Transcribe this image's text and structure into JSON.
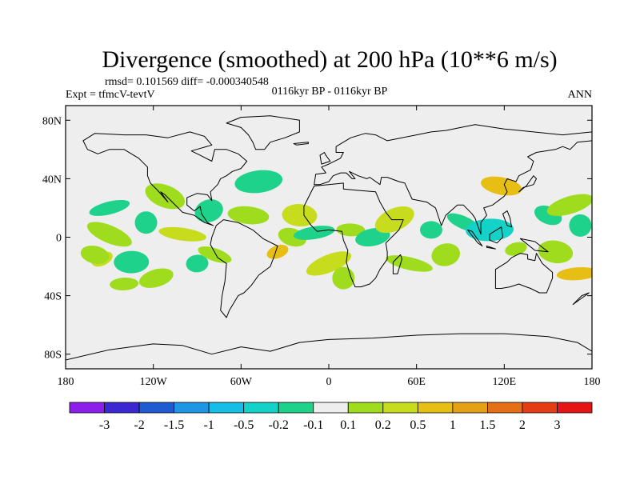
{
  "title": "Divergence (smoothed) at 200 hPa (10**6 m/s)",
  "stats": "rmsd= 0.101569 diff= -0.000340548",
  "expt": "Expt = tfmcV-tevtV",
  "period": "0116kyr BP - 0116kyr BP",
  "season": "ANN",
  "map": {
    "lon_range": [
      -180,
      180
    ],
    "lat_range": [
      -90,
      90
    ],
    "background": "#eeeeee",
    "coastline_color": "#000000",
    "x_ticks": [
      {
        "value": -180,
        "label": "180"
      },
      {
        "value": -120,
        "label": "120W"
      },
      {
        "value": -60,
        "label": "60W"
      },
      {
        "value": 0,
        "label": "0"
      },
      {
        "value": 60,
        "label": "60E"
      },
      {
        "value": 120,
        "label": "120E"
      },
      {
        "value": 180,
        "label": "180"
      }
    ],
    "y_ticks": [
      {
        "value": 80,
        "label": "80N"
      },
      {
        "value": 40,
        "label": "40N"
      },
      {
        "value": 0,
        "label": "0"
      },
      {
        "value": -40,
        "label": "40S"
      },
      {
        "value": -80,
        "label": "80S"
      }
    ]
  },
  "colorbar": {
    "colors": [
      "#8c1eeb",
      "#3c28d2",
      "#1e5ad2",
      "#1e96e6",
      "#14bee6",
      "#14d2c8",
      "#1ed28c",
      "#eeeeee",
      "#a0dc1e",
      "#c8dc1e",
      "#e6be14",
      "#e6a014",
      "#e66e14",
      "#e63c14",
      "#e61414"
    ],
    "labels": [
      "-3",
      "-2",
      "-1.5",
      "-1",
      "-0.5",
      "-0.2",
      "-0.1",
      "0.1",
      "0.2",
      "0.5",
      "1",
      "1.5",
      "2",
      "3"
    ]
  },
  "chart_data": {
    "type": "heatmap",
    "variable": "Divergence (smoothed)",
    "level": "200 hPa",
    "units": "10**6 m/s",
    "levels": [
      -3,
      -2,
      -1.5,
      -1,
      -0.5,
      -0.2,
      -0.1,
      0.1,
      0.2,
      0.5,
      1,
      1.5,
      2,
      3
    ],
    "features": [
      {
        "lon": -155,
        "lat": -15,
        "value": 0.35
      },
      {
        "lon": -160,
        "lat": -12,
        "value": 0.15
      },
      {
        "lon": -135,
        "lat": -17,
        "value": -0.15
      },
      {
        "lon": -150,
        "lat": 20,
        "value": -0.12
      },
      {
        "lon": -150,
        "lat": 2,
        "value": 0.15
      },
      {
        "lon": -125,
        "lat": 10,
        "value": -0.12
      },
      {
        "lon": -140,
        "lat": -32,
        "value": 0.15
      },
      {
        "lon": -118,
        "lat": -28,
        "value": 0.15
      },
      {
        "lon": -112,
        "lat": 28,
        "value": 0.15
      },
      {
        "lon": -100,
        "lat": 2,
        "value": 0.3
      },
      {
        "lon": -90,
        "lat": -18,
        "value": -0.15
      },
      {
        "lon": -82,
        "lat": 18,
        "value": -0.12
      },
      {
        "lon": -78,
        "lat": -12,
        "value": 0.15
      },
      {
        "lon": -55,
        "lat": 15,
        "value": 0.15
      },
      {
        "lon": -48,
        "lat": 38,
        "value": -0.12
      },
      {
        "lon": -35,
        "lat": -10,
        "value": 0.7
      },
      {
        "lon": -25,
        "lat": 0,
        "value": 0.15
      },
      {
        "lon": -20,
        "lat": 15,
        "value": 0.3
      },
      {
        "lon": -10,
        "lat": 3,
        "value": -0.15
      },
      {
        "lon": 0,
        "lat": -18,
        "value": 0.3
      },
      {
        "lon": 10,
        "lat": -28,
        "value": 0.15
      },
      {
        "lon": 15,
        "lat": 5,
        "value": 0.15
      },
      {
        "lon": 30,
        "lat": 0,
        "value": -0.15
      },
      {
        "lon": 45,
        "lat": 12,
        "value": 0.3
      },
      {
        "lon": 55,
        "lat": -18,
        "value": 0.15
      },
      {
        "lon": 70,
        "lat": 5,
        "value": -0.15
      },
      {
        "lon": 80,
        "lat": -12,
        "value": 0.15
      },
      {
        "lon": 92,
        "lat": 10,
        "value": -0.15
      },
      {
        "lon": 118,
        "lat": 35,
        "value": 0.7
      },
      {
        "lon": 110,
        "lat": 5,
        "value": -0.3
      },
      {
        "lon": 128,
        "lat": -8,
        "value": 0.15
      },
      {
        "lon": 150,
        "lat": 15,
        "value": -0.12
      },
      {
        "lon": 155,
        "lat": -10,
        "value": 0.15
      },
      {
        "lon": 170,
        "lat": -25,
        "value": 0.7
      },
      {
        "lon": 165,
        "lat": 22,
        "value": 0.15
      },
      {
        "lon": 172,
        "lat": 8,
        "value": -0.12
      }
    ]
  }
}
